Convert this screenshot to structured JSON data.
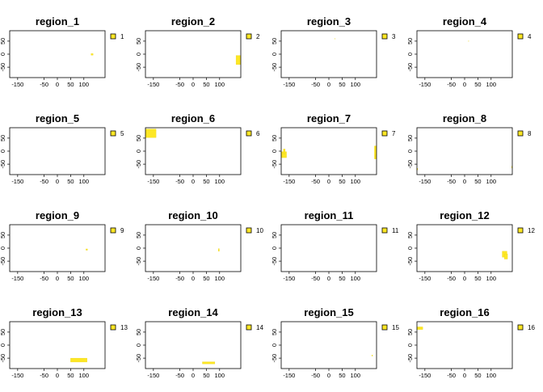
{
  "chart_data": {
    "type": "map",
    "xlim": [
      -180,
      180
    ],
    "ylim": [
      -90,
      90
    ],
    "x_ticks": [
      -150,
      -50,
      0,
      50,
      100
    ],
    "y_ticks": [
      50,
      0,
      -50
    ],
    "fill_color": "#FDE725",
    "legend_position": "right",
    "panels": [
      {
        "title": "region_1",
        "legend": "1",
        "shapes": [
          {
            "xmin": 127,
            "xmax": 135,
            "ymin": -4,
            "ymax": 2
          }
        ]
      },
      {
        "title": "region_2",
        "legend": "2",
        "shapes": [
          {
            "xmin": 162,
            "xmax": 182,
            "ymin": -40,
            "ymax": -5
          }
        ]
      },
      {
        "title": "region_3",
        "legend": "3",
        "shapes": [
          {
            "xmin": 22,
            "xmax": 24,
            "ymin": 59,
            "ymax": 60
          }
        ]
      },
      {
        "title": "region_4",
        "legend": "4",
        "shapes": [
          {
            "xmin": 14,
            "xmax": 15,
            "ymin": 50,
            "ymax": 51
          }
        ]
      },
      {
        "title": "region_5",
        "legend": "5",
        "shapes": []
      },
      {
        "title": "region_6",
        "legend": "6",
        "shapes": [
          {
            "xmin": -180,
            "xmax": -140,
            "ymin": 52,
            "ymax": 85
          }
        ]
      },
      {
        "title": "region_7",
        "legend": "7",
        "shapes": [
          {
            "xmin": -180,
            "xmax": -160,
            "ymin": -25,
            "ymax": -2
          },
          {
            "xmin": -172,
            "xmax": -165,
            "ymin": -10,
            "ymax": 8
          },
          {
            "xmin": 172,
            "xmax": 182,
            "ymin": -30,
            "ymax": 20
          },
          {
            "xmin": 176,
            "xmax": 182,
            "ymin": -25,
            "ymax": -15
          }
        ]
      },
      {
        "title": "region_8",
        "legend": "8",
        "shapes": [
          {
            "xmin": 178,
            "xmax": 181,
            "ymin": -65,
            "ymax": -58
          },
          {
            "xmin": -180,
            "xmax": -177,
            "ymin": -72,
            "ymax": -66
          }
        ]
      },
      {
        "title": "region_9",
        "legend": "9",
        "shapes": [
          {
            "xmin": 108,
            "xmax": 114,
            "ymin": -8,
            "ymax": -3
          }
        ]
      },
      {
        "title": "region_10",
        "legend": "10",
        "shapes": [
          {
            "xmin": 95,
            "xmax": 99,
            "ymin": -12,
            "ymax": -2
          }
        ]
      },
      {
        "title": "region_11",
        "legend": "11",
        "shapes": []
      },
      {
        "title": "region_12",
        "legend": "12",
        "shapes": [
          {
            "xmin": 142,
            "xmax": 160,
            "ymin": -35,
            "ymax": -12
          },
          {
            "xmin": 150,
            "xmax": 162,
            "ymin": -42,
            "ymax": -22
          }
        ]
      },
      {
        "title": "region_13",
        "legend": "13",
        "shapes": [
          {
            "xmin": 50,
            "xmax": 112,
            "ymin": -65,
            "ymax": -50
          }
        ]
      },
      {
        "title": "region_14",
        "legend": "14",
        "shapes": [
          {
            "xmin": 35,
            "xmax": 82,
            "ymin": -72,
            "ymax": -64
          }
        ]
      },
      {
        "title": "region_15",
        "legend": "15",
        "shapes": [
          {
            "xmin": 162,
            "xmax": 165,
            "ymin": -42,
            "ymax": -38
          }
        ]
      },
      {
        "title": "region_16",
        "legend": "16",
        "shapes": [
          {
            "xmin": -180,
            "xmax": -158,
            "ymin": 60,
            "ymax": 70
          }
        ]
      }
    ]
  }
}
